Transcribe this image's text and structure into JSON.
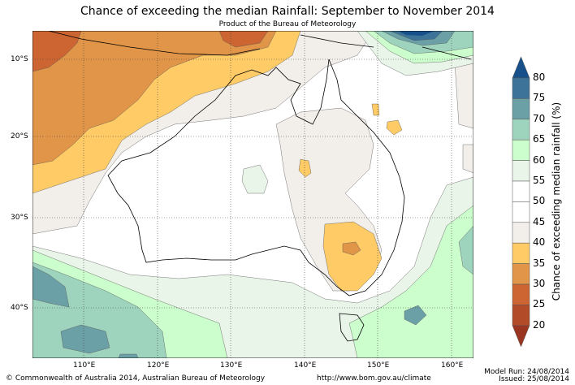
{
  "title": "Chance of exceeding the median Rainfall: September to November 2014",
  "subtitle": "Product of the Bureau of Meteorology",
  "lon_labels": [
    "110°E",
    "120°E",
    "130°E",
    "140°E",
    "150°E",
    "160°E"
  ],
  "lat_labels": [
    "10°S",
    "20°S",
    "30°S",
    "40°S"
  ],
  "colorbar": {
    "label": "Chance of exceeding median rainfall (%)",
    "ticks": [
      "80",
      "75",
      "70",
      "65",
      "60",
      "55",
      "50",
      "45",
      "40",
      "35",
      "30",
      "25",
      "20"
    ],
    "colors": {
      "above80": "#17508a",
      "75-80": "#3d7398",
      "70-75": "#6aa0a6",
      "65-70": "#9ed3be",
      "60-65": "#ccfdcc",
      "55-60": "#eaf5ea",
      "50-55": "#ffffff",
      "45-50": "#ffffff",
      "40-45": "#f2eee9",
      "35-40": "#fecb66",
      "30-35": "#e09548",
      "25-30": "#cc6532",
      "20-25": "#b24b28",
      "below20": "#9a3522"
    }
  },
  "footer": {
    "copyright": "© Commonwealth of Australia 2014, Australian Bureau of Meteorology",
    "url": "http://www.bom.gov.au/climate",
    "model_run": "Model Run: 24/08/2014",
    "issued": "Issued: 25/08/2014"
  }
}
